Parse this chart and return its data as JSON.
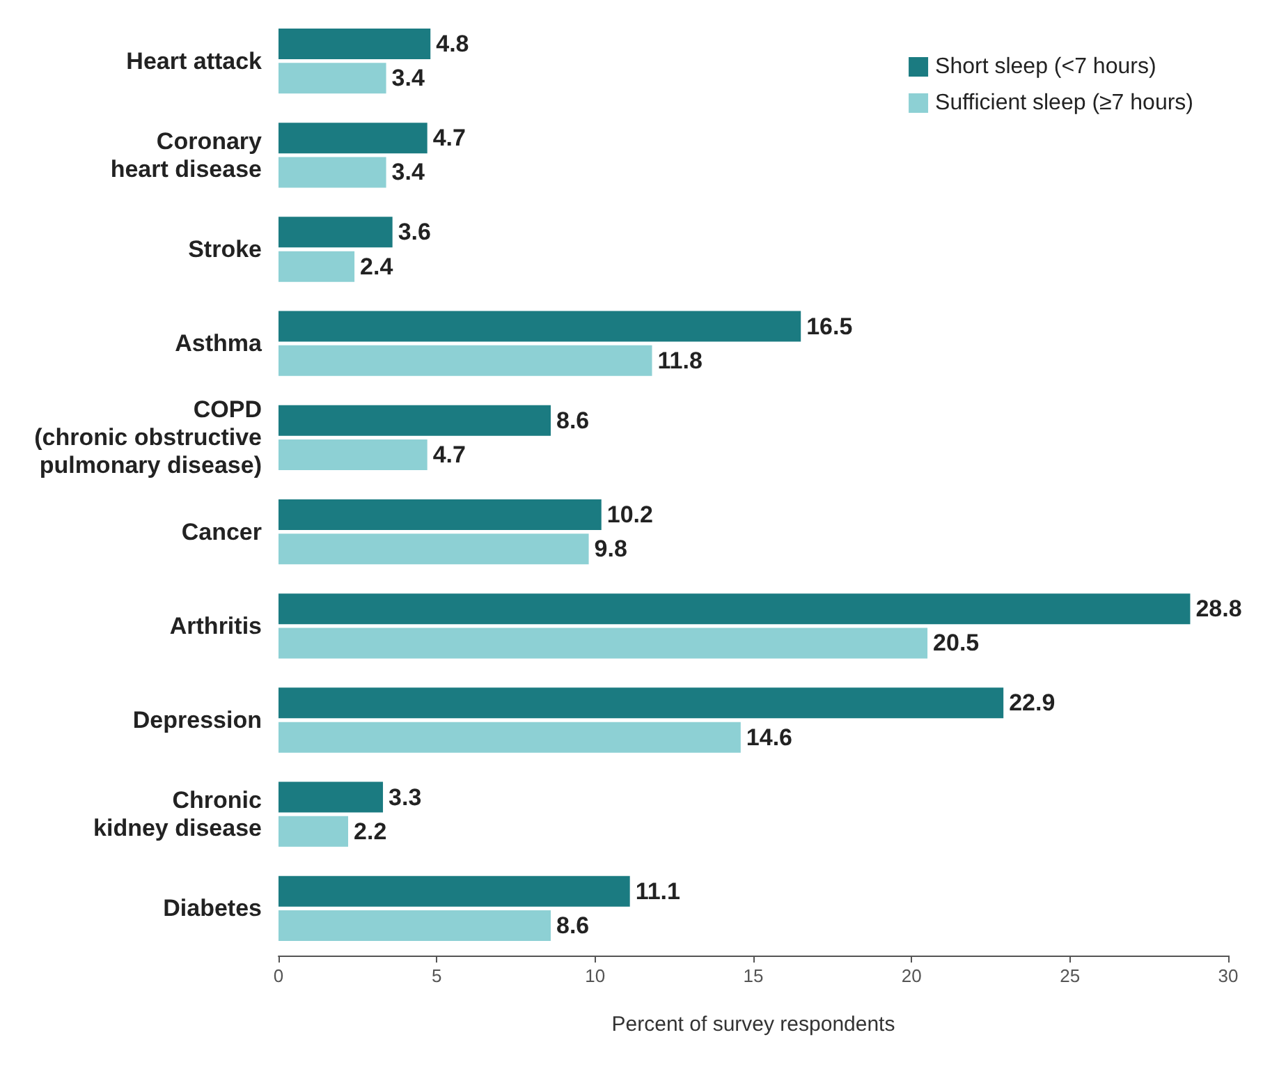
{
  "chart_data": {
    "type": "bar",
    "orientation": "horizontal",
    "categories": [
      "Heart attack",
      "Coronary\nheart disease",
      "Stroke",
      "Asthma",
      "COPD\n(chronic obstructive\npulmonary disease)",
      "Cancer",
      "Arthritis",
      "Depression",
      "Chronic\nkidney disease",
      "Diabetes"
    ],
    "series": [
      {
        "name": "Short sleep (<7 hours)",
        "color": "#1b7b81",
        "values": [
          4.8,
          4.7,
          3.6,
          16.5,
          8.6,
          10.2,
          28.8,
          22.9,
          3.3,
          11.1
        ]
      },
      {
        "name": "Sufficient sleep (≥7 hours)",
        "color": "#8dd0d4",
        "values": [
          3.4,
          3.4,
          2.4,
          11.8,
          4.7,
          9.8,
          20.5,
          14.6,
          2.2,
          8.6
        ]
      }
    ],
    "xlim": [
      0,
      30
    ],
    "xticks": [
      0,
      5,
      10,
      15,
      20,
      25,
      30
    ],
    "xlabel": "Percent of survey respondents",
    "data_labels": true,
    "legend": "top right",
    "grid": false
  }
}
